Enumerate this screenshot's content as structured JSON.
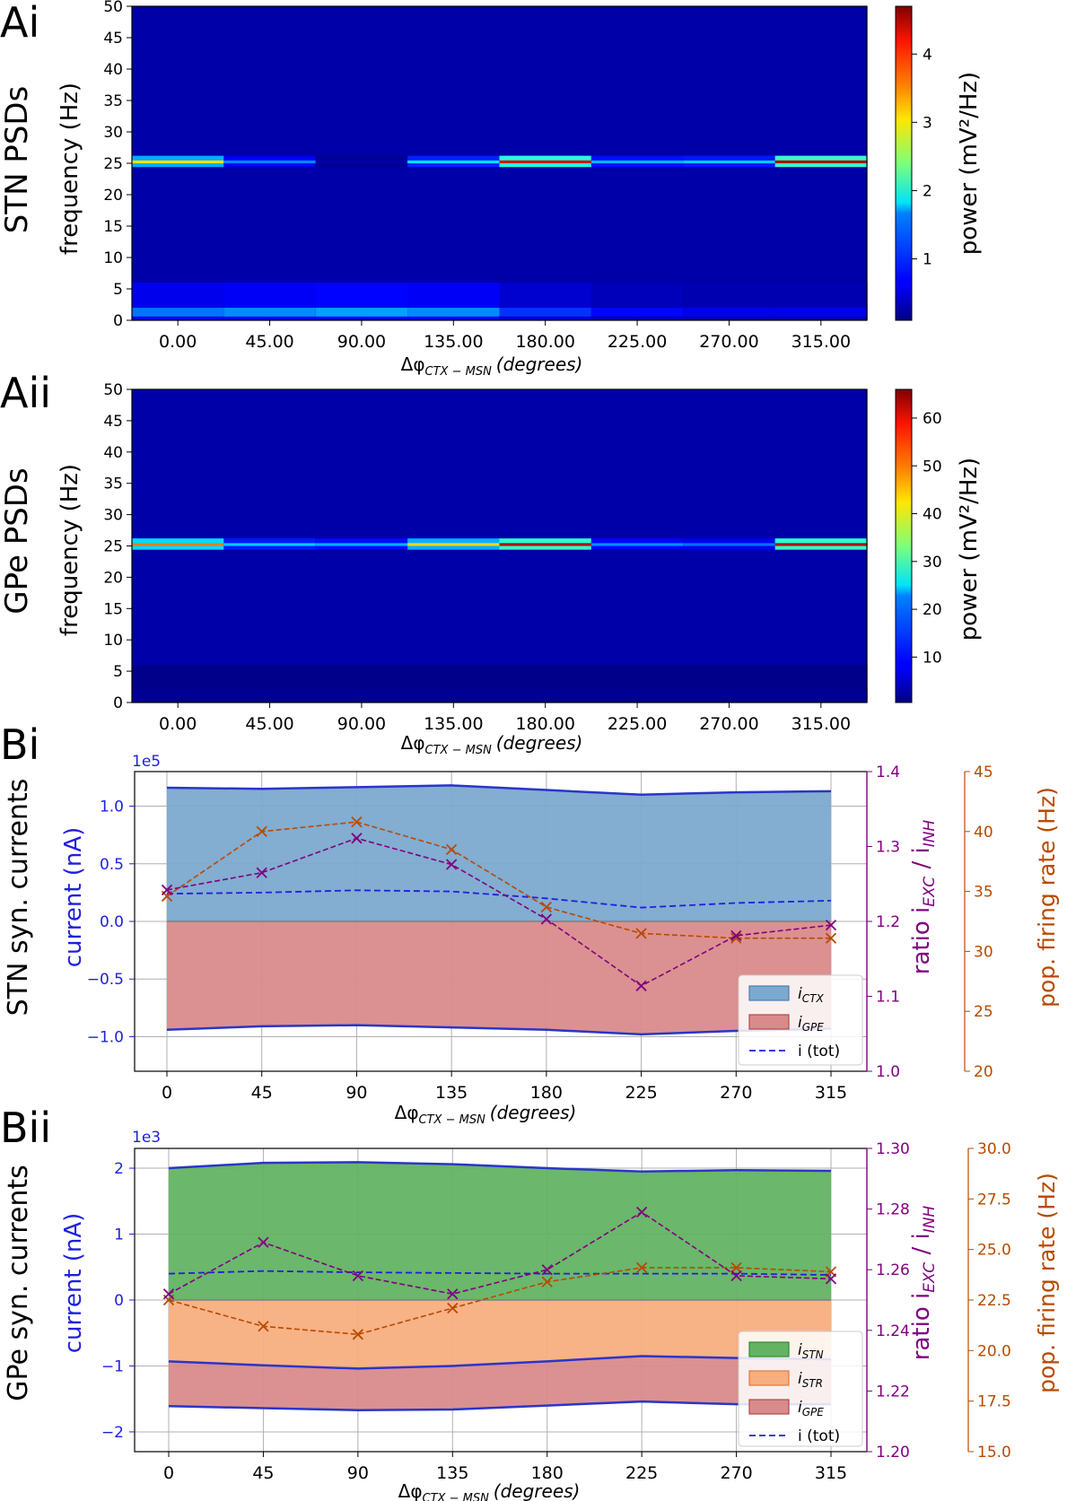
{
  "figure": {
    "panel_labels": [
      "Ai",
      "Aii",
      "Bi",
      "Bii"
    ],
    "side_labels": [
      "STN PSDs",
      "GPe PSDs",
      "STN syn. currents",
      "GPe syn. currents"
    ]
  },
  "colors": {
    "blue_axis": "#1f1fe0",
    "purple": "#800080",
    "orange": "#b84a00",
    "ctx_fill": "#7ca9cf",
    "gpe_fill": "#d98b8b",
    "stn_fill": "#63b363",
    "str_fill": "#f7ae80",
    "line_blue": "#2a35c9"
  },
  "chart_data": [
    {
      "type": "heatmap",
      "panel": "Ai",
      "x_label_main": "Δφ",
      "x_label_sub": "CTX − MSN",
      "x_label_unit": "(degrees)",
      "ylabel": "frequency (Hz)",
      "colorbar_label": "power (mV²/Hz)",
      "x_categories": [
        "0.00",
        "45.00",
        "90.00",
        "135.00",
        "180.00",
        "225.00",
        "270.00",
        "315.00"
      ],
      "y_ticks": [
        0,
        5,
        10,
        15,
        20,
        25,
        30,
        35,
        40,
        45,
        50
      ],
      "ylim": [
        0,
        50
      ],
      "colorbar_ticks": [
        1,
        2,
        3,
        4
      ],
      "colorbar_range": [
        0.1,
        4.7
      ],
      "colormap": "jet",
      "peak_frequency_hz": 25,
      "peak_power": [
        3.1,
        1.3,
        0.3,
        1.7,
        4.3,
        1.5,
        1.6,
        4.5
      ],
      "low_freq_power": [
        1.2,
        1.3,
        1.4,
        1.3,
        0.9,
        0.7,
        0.6,
        0.6
      ]
    },
    {
      "type": "heatmap",
      "panel": "Aii",
      "x_label_main": "Δφ",
      "x_label_sub": "CTX − MSN",
      "x_label_unit": "(degrees)",
      "ylabel": "frequency (Hz)",
      "colorbar_label": "power (mV²/Hz)",
      "x_categories": [
        "0.00",
        "45.00",
        "90.00",
        "135.00",
        "180.00",
        "225.00",
        "270.00",
        "315.00"
      ],
      "y_ticks": [
        0,
        5,
        10,
        15,
        20,
        25,
        30,
        35,
        40,
        45,
        50
      ],
      "ylim": [
        0,
        50
      ],
      "colorbar_ticks": [
        10,
        20,
        30,
        40,
        50,
        60
      ],
      "colorbar_range": [
        0.5,
        66
      ],
      "colormap": "jet",
      "peak_frequency_hz": 25,
      "peak_power": [
        50,
        22,
        20,
        44,
        62,
        18,
        16,
        62
      ],
      "low_freq_power": [
        2,
        2,
        2,
        2,
        2,
        2,
        2,
        2
      ]
    },
    {
      "type": "area",
      "panel": "Bi",
      "x": [
        0,
        45,
        90,
        135,
        180,
        225,
        270,
        315
      ],
      "x_label_main": "Δφ",
      "x_label_sub": "CTX − MSN",
      "x_label_unit": "(degrees)",
      "ylabel": "current (nA)",
      "y_multiplier": "1e5",
      "ylim": [
        -1.3,
        1.3
      ],
      "y_ticks": [
        -1.0,
        -0.5,
        0.0,
        0.5,
        1.0
      ],
      "y_tick_labels": [
        "−1.0",
        "−0.5",
        "0.0",
        "0.5",
        "1.0"
      ],
      "series": [
        {
          "name": "i",
          "name_sub": "CTX",
          "kind": "fill",
          "values": [
            1.16,
            1.15,
            1.165,
            1.18,
            1.14,
            1.1,
            1.12,
            1.13
          ]
        },
        {
          "name": "i",
          "name_sub": "GPE",
          "kind": "fill",
          "values": [
            -0.94,
            -0.91,
            -0.9,
            -0.92,
            -0.94,
            -0.98,
            -0.95,
            -0.93
          ]
        },
        {
          "name": "i (tot)",
          "kind": "dashed",
          "values": [
            0.24,
            0.25,
            0.27,
            0.26,
            0.2,
            0.12,
            0.16,
            0.18
          ]
        }
      ],
      "ratio_axis": {
        "label_main": "ratio i",
        "label_sub1": "EXC",
        "label_mid": " / i",
        "label_sub2": "INH",
        "ylim": [
          1.0,
          1.4
        ],
        "ticks": [
          1.0,
          1.1,
          1.2,
          1.3,
          1.4
        ],
        "tick_labels": [
          "1.0",
          "1.1",
          "1.2",
          "1.3",
          "1.4"
        ],
        "values": [
          1.242,
          1.265,
          1.311,
          1.276,
          1.203,
          1.114,
          1.181,
          1.195
        ]
      },
      "rate_axis": {
        "label": "pop. firing rate (Hz)",
        "ylim": [
          20,
          45
        ],
        "ticks": [
          20,
          25,
          30,
          35,
          40,
          45
        ],
        "tick_labels": [
          "20",
          "25",
          "30",
          "35",
          "40",
          "45"
        ],
        "values": [
          34.6,
          40.0,
          40.8,
          38.5,
          33.7,
          31.5,
          31.1,
          31.1
        ]
      },
      "legend_position": "lower-right"
    },
    {
      "type": "area",
      "panel": "Bii",
      "x": [
        0,
        45,
        90,
        135,
        180,
        225,
        270,
        315
      ],
      "x_label_main": "Δφ",
      "x_label_sub": "CTX − MSN",
      "x_label_unit": "(degrees)",
      "ylabel": "current (nA)",
      "y_multiplier": "1e3",
      "ylim": [
        -2.3,
        2.3
      ],
      "y_ticks": [
        -2,
        -1,
        0,
        1,
        2
      ],
      "y_tick_labels": [
        "−2",
        "−1",
        "0",
        "1",
        "2"
      ],
      "series": [
        {
          "name": "i",
          "name_sub": "STN",
          "kind": "fill",
          "values": [
            2.0,
            2.08,
            2.09,
            2.06,
            2.0,
            1.95,
            1.97,
            1.96
          ]
        },
        {
          "name": "i",
          "name_sub": "STR",
          "kind": "fill",
          "values": [
            -0.93,
            -0.99,
            -1.04,
            -1.0,
            -0.93,
            -0.85,
            -0.88,
            -0.9
          ]
        },
        {
          "name": "i",
          "name_sub": "GPE",
          "kind": "fill",
          "values": [
            -1.61,
            -1.64,
            -1.67,
            -1.66,
            -1.6,
            -1.54,
            -1.58,
            -1.58
          ]
        },
        {
          "name": "i (tot)",
          "kind": "dashed",
          "values": [
            0.4,
            0.44,
            0.42,
            0.41,
            0.4,
            0.4,
            0.4,
            0.38
          ]
        }
      ],
      "ratio_axis": {
        "label_main": "ratio i",
        "label_sub1": "EXC",
        "label_mid": " / i",
        "label_sub2": "INH",
        "ylim": [
          1.2,
          1.3
        ],
        "ticks": [
          1.2,
          1.22,
          1.24,
          1.26,
          1.28,
          1.3
        ],
        "tick_labels": [
          "1.20",
          "1.22",
          "1.24",
          "1.26",
          "1.28",
          "1.30"
        ],
        "values": [
          1.252,
          1.269,
          1.258,
          1.252,
          1.26,
          1.279,
          1.258,
          1.257
        ]
      },
      "rate_axis": {
        "label": "pop. firing rate (Hz)",
        "ylim": [
          15,
          30
        ],
        "ticks": [
          15,
          17.5,
          20,
          22.5,
          25,
          27.5,
          30
        ],
        "tick_labels": [
          "15.0",
          "17.5",
          "20.0",
          "22.5",
          "25.0",
          "27.5",
          "30.0"
        ],
        "values": [
          22.5,
          21.2,
          20.8,
          22.1,
          23.4,
          24.1,
          24.1,
          23.9
        ]
      },
      "legend_position": "lower-right"
    }
  ]
}
